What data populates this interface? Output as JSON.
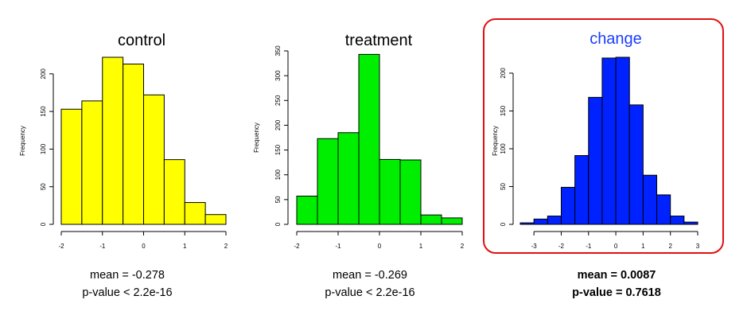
{
  "chart_data": [
    {
      "type": "bar",
      "title": "control",
      "title_color": "#000000",
      "bar_color": "#ffff00",
      "ylabel": "Frequency",
      "xlabel": "",
      "bin_edges": [
        -2,
        -1.5,
        -1,
        -0.5,
        0,
        0.5,
        1,
        1.5,
        2
      ],
      "values": [
        153,
        164,
        222,
        213,
        172,
        86,
        29,
        13
      ],
      "xlim": [
        -2,
        2
      ],
      "ylim": [
        0,
        222
      ],
      "xticks": [
        -2,
        -1,
        0,
        1,
        2
      ],
      "yticks": [
        0,
        50,
        100,
        150,
        200
      ],
      "stats": {
        "mean": "mean = -0.278",
        "pvalue": "p-value < 2.2e-16"
      }
    },
    {
      "type": "bar",
      "title": "treatment",
      "title_color": "#000000",
      "bar_color": "#00ee00",
      "ylabel": "Frequency",
      "xlabel": "",
      "bin_edges": [
        -2,
        -1.5,
        -1,
        -0.5,
        0,
        0.5,
        1,
        1.5,
        2
      ],
      "values": [
        57,
        173,
        185,
        343,
        131,
        130,
        19,
        13
      ],
      "xlim": [
        -2,
        2
      ],
      "ylim": [
        0,
        350
      ],
      "xticks": [
        -2,
        -1,
        0,
        1,
        2
      ],
      "yticks": [
        0,
        50,
        100,
        150,
        200,
        250,
        300,
        350
      ],
      "stats": {
        "mean": "mean = -0.269",
        "pvalue": "p-value < 2.2e-16"
      }
    },
    {
      "type": "bar",
      "title": "change",
      "title_color": "#1a3cff",
      "bar_color": "#0022ff",
      "ylabel": "Frequency",
      "xlabel": "",
      "bin_edges": [
        -3.5,
        -3,
        -2.5,
        -2,
        -1.5,
        -1,
        -0.5,
        0,
        0.5,
        1,
        1.5,
        2,
        2.5,
        3
      ],
      "values": [
        2,
        7,
        11,
        49,
        91,
        168,
        220,
        221,
        158,
        65,
        39,
        11,
        3
      ],
      "xlim": [
        -3.5,
        3
      ],
      "ylim": [
        0,
        221
      ],
      "xticks": [
        -3,
        -2,
        -1,
        0,
        1,
        2,
        3
      ],
      "yticks": [
        0,
        50,
        100,
        150,
        200
      ],
      "stats": {
        "mean": "mean =  0.0087",
        "pvalue": "p-value = 0.7618"
      }
    }
  ]
}
